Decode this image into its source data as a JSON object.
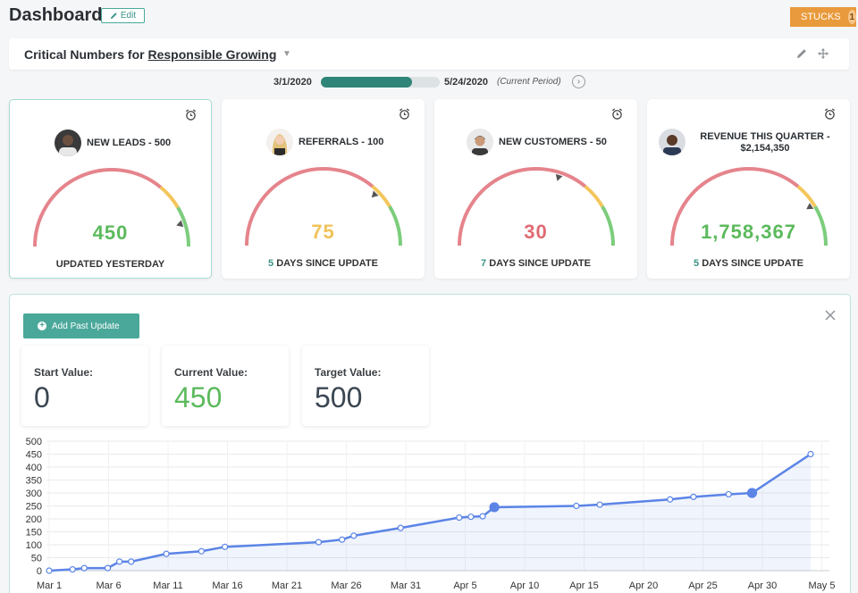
{
  "header": {
    "title": "Dashboard",
    "edit_label": "Edit",
    "stucks_label": "STUCKS",
    "stucks_count": "1"
  },
  "critical": {
    "title_prefix": "Critical Numbers for",
    "title_link": "Responsible Growing"
  },
  "period": {
    "start": "3/1/2020",
    "end": "5/24/2020",
    "note": "(Current Period)",
    "progress": 0.77
  },
  "kpis": [
    {
      "title": "NEW LEADS - 500",
      "value": "450",
      "status_num": "",
      "status_text": "UPDATED YESTERDAY",
      "value_color": "#5cba5c",
      "gauge_fraction": 0.9
    },
    {
      "title": "REFERRALS - 100",
      "value": "75",
      "status_num": "5",
      "status_text": "DAYS SINCE UPDATE",
      "value_color": "#f0c35a",
      "gauge_fraction": 0.75
    },
    {
      "title": "NEW CUSTOMERS - 50",
      "value": "30",
      "status_num": "7",
      "status_text": "DAYS SINCE UPDATE",
      "value_color": "#e06a73",
      "gauge_fraction": 0.6
    },
    {
      "title": "REVENUE THIS QUARTER - $2,154,350",
      "value": "1,758,367",
      "status_num": "5",
      "status_text": "DAYS SINCE UPDATE",
      "value_color": "#5cba5c",
      "gauge_fraction": 0.82
    }
  ],
  "detail": {
    "add_label": "Add Past Update",
    "start_label": "Start Value:",
    "start_value": "0",
    "current_label": "Current Value:",
    "current_value": "450",
    "target_label": "Target Value:",
    "target_value": "500"
  },
  "colors": {
    "accent": "#4aa89a",
    "line": "#5b84e6",
    "gauge_red": "#e5848c",
    "gauge_yellow": "#f3c65c",
    "gauge_green": "#7ccd7c"
  },
  "chart_data": {
    "type": "line",
    "y_ticks": [
      "500",
      "450",
      "400",
      "350",
      "300",
      "250",
      "200",
      "150",
      "100",
      "50",
      "0"
    ],
    "x_labels": [
      "Mar 1",
      "Mar 6",
      "Mar 11",
      "Mar 16",
      "Mar 21",
      "Mar 26",
      "Mar 31",
      "Apr 5",
      "Apr 10",
      "Apr 15",
      "Apr 20",
      "Apr 25",
      "Apr 30",
      "May 5"
    ],
    "ylim": [
      0,
      500
    ],
    "xlim": [
      "2020-03-01",
      "2020-05-05"
    ],
    "grid": true,
    "series": [
      {
        "points": [
          [
            "2020-03-01",
            0
          ],
          [
            "2020-03-03",
            5
          ],
          [
            "2020-03-04",
            10
          ],
          [
            "2020-03-06",
            10
          ],
          [
            "2020-03-07",
            35
          ],
          [
            "2020-03-08",
            35
          ],
          [
            "2020-03-11",
            65
          ],
          [
            "2020-03-14",
            75
          ],
          [
            "2020-03-16",
            92
          ],
          [
            "2020-03-24",
            110
          ],
          [
            "2020-03-26",
            120
          ],
          [
            "2020-03-27",
            135
          ],
          [
            "2020-03-31",
            165
          ],
          [
            "2020-04-05",
            205
          ],
          [
            "2020-04-06",
            208
          ],
          [
            "2020-04-07",
            210
          ],
          [
            "2020-04-08",
            245
          ],
          [
            "2020-04-15",
            250
          ],
          [
            "2020-04-17",
            255
          ],
          [
            "2020-04-23",
            275
          ],
          [
            "2020-04-25",
            285
          ],
          [
            "2020-04-28",
            295
          ],
          [
            "2020-04-30",
            300
          ],
          [
            "2020-05-05",
            450
          ]
        ],
        "highlighted": [
          "2020-04-08",
          "2020-04-30"
        ]
      }
    ]
  }
}
